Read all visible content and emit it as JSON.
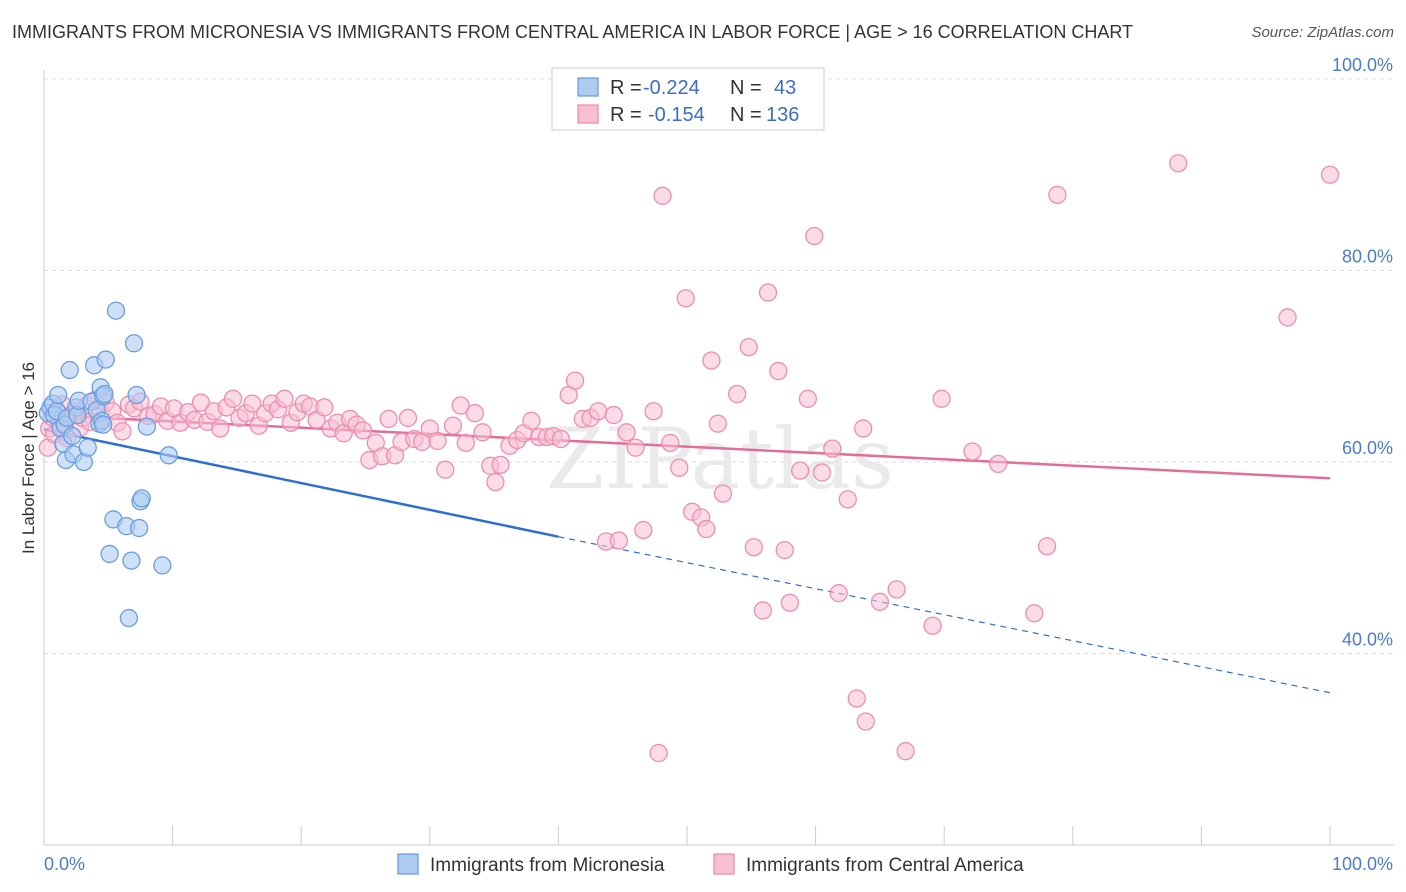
{
  "title": "IMMIGRANTS FROM MICRONESIA VS IMMIGRANTS FROM CENTRAL AMERICA IN LABOR FORCE | AGE > 16 CORRELATION CHART",
  "source": "Source: ZipAtlas.com",
  "watermark": "ZIPatlas",
  "colors": {
    "micronesia_fill": "#aecbf2",
    "micronesia_stroke": "#6a9ee0",
    "micronesia_line": "#2f6fd0",
    "central_fill": "#f8bfd1",
    "central_stroke": "#ee8eae",
    "central_line": "#e26d98",
    "tick_label": "#4a7cc9",
    "grid": "#dddddd"
  },
  "legend": {
    "rows": [
      {
        "r_label": "R =",
        "r_value": "-0.224",
        "n_label": "N =",
        "n_value": "43"
      },
      {
        "r_label": "R =",
        "r_value": "-0.154",
        "n_label": "N =",
        "n_value": "136"
      }
    ]
  },
  "chart_data": {
    "type": "scatter",
    "xlabel": "",
    "ylabel": "In Labor Force | Age > 16",
    "xlim": [
      0,
      100
    ],
    "ylim": [
      20,
      105
    ],
    "x_tick_labels": [
      "0.0%",
      "100.0%"
    ],
    "y_ticks": [
      40,
      60,
      80,
      100
    ],
    "y_tick_labels": [
      "40.0%",
      "60.0%",
      "80.0%",
      "100.0%"
    ],
    "grid": true,
    "legend_position": "top-center",
    "series": [
      {
        "name": "Immigrants from Micronesia",
        "trend": {
          "x0": 0,
          "y0": 63.4,
          "x1": 40,
          "y1": 52.2,
          "dashed_to_x": 100,
          "dashed_to_y": 35.9
        },
        "points": [
          [
            0.3,
            65.1
          ],
          [
            0.5,
            65.7
          ],
          [
            0.7,
            66.1
          ],
          [
            0.8,
            64.9
          ],
          [
            1.0,
            65.3
          ],
          [
            1.1,
            67.0
          ],
          [
            1.3,
            63.5
          ],
          [
            1.5,
            61.9
          ],
          [
            1.6,
            63.9
          ],
          [
            1.7,
            60.2
          ],
          [
            1.8,
            64.6
          ],
          [
            2.0,
            69.6
          ],
          [
            2.2,
            62.7
          ],
          [
            2.3,
            60.8
          ],
          [
            2.5,
            65.7
          ],
          [
            2.6,
            64.9
          ],
          [
            2.7,
            66.4
          ],
          [
            3.1,
            60.0
          ],
          [
            3.4,
            61.5
          ],
          [
            3.7,
            66.3
          ],
          [
            3.9,
            70.1
          ],
          [
            4.1,
            65.4
          ],
          [
            4.3,
            64.0
          ],
          [
            4.4,
            67.8
          ],
          [
            4.6,
            66.9
          ],
          [
            4.5,
            64.3
          ],
          [
            4.6,
            63.9
          ],
          [
            4.7,
            67.1
          ],
          [
            4.8,
            70.7
          ],
          [
            5.1,
            50.4
          ],
          [
            5.4,
            54.0
          ],
          [
            5.6,
            75.8
          ],
          [
            6.4,
            53.3
          ],
          [
            6.6,
            43.7
          ],
          [
            6.8,
            49.7
          ],
          [
            7.0,
            72.4
          ],
          [
            7.2,
            67.0
          ],
          [
            7.4,
            53.1
          ],
          [
            7.5,
            55.9
          ],
          [
            7.6,
            56.2
          ],
          [
            8.0,
            63.7
          ],
          [
            9.2,
            49.2
          ],
          [
            9.7,
            60.7
          ]
        ]
      },
      {
        "name": "Immigrants from Central America",
        "trend": {
          "x0": 0,
          "y0": 64.9,
          "x1": 100,
          "y1": 58.3
        },
        "points": [
          [
            0.3,
            61.5
          ],
          [
            0.4,
            63.5
          ],
          [
            0.6,
            64.7
          ],
          [
            0.8,
            62.9
          ],
          [
            1.0,
            65.4
          ],
          [
            1.2,
            64.0
          ],
          [
            1.4,
            66.0
          ],
          [
            1.6,
            63.1
          ],
          [
            1.8,
            62.5
          ],
          [
            2.0,
            64.8
          ],
          [
            2.2,
            65.0
          ],
          [
            2.5,
            65.3
          ],
          [
            2.8,
            63.6
          ],
          [
            3.0,
            64.6
          ],
          [
            3.3,
            65.9
          ],
          [
            3.6,
            64.2
          ],
          [
            4.0,
            66.5
          ],
          [
            4.4,
            65.1
          ],
          [
            4.8,
            66.2
          ],
          [
            5.3,
            65.3
          ],
          [
            5.7,
            64.1
          ],
          [
            6.1,
            63.2
          ],
          [
            6.6,
            66.0
          ],
          [
            7.0,
            65.6
          ],
          [
            7.5,
            66.3
          ],
          [
            8.1,
            64.8
          ],
          [
            8.6,
            65.0
          ],
          [
            9.1,
            65.8
          ],
          [
            9.6,
            64.3
          ],
          [
            10.1,
            65.6
          ],
          [
            10.6,
            64.1
          ],
          [
            11.2,
            65.2
          ],
          [
            11.7,
            64.4
          ],
          [
            12.2,
            66.2
          ],
          [
            12.7,
            64.2
          ],
          [
            13.2,
            65.3
          ],
          [
            13.7,
            63.5
          ],
          [
            14.2,
            65.7
          ],
          [
            14.7,
            66.6
          ],
          [
            15.2,
            64.6
          ],
          [
            15.7,
            65.1
          ],
          [
            16.2,
            66.1
          ],
          [
            16.7,
            63.8
          ],
          [
            17.2,
            65.1
          ],
          [
            17.7,
            66.1
          ],
          [
            18.2,
            65.5
          ],
          [
            18.7,
            66.6
          ],
          [
            19.2,
            64.1
          ],
          [
            19.7,
            65.2
          ],
          [
            20.2,
            66.1
          ],
          [
            20.7,
            65.8
          ],
          [
            21.2,
            64.4
          ],
          [
            21.8,
            65.7
          ],
          [
            22.3,
            63.5
          ],
          [
            22.8,
            64.1
          ],
          [
            23.3,
            63.0
          ],
          [
            23.8,
            64.5
          ],
          [
            24.3,
            63.9
          ],
          [
            24.8,
            63.3
          ],
          [
            25.3,
            60.2
          ],
          [
            25.8,
            62.0
          ],
          [
            26.3,
            60.6
          ],
          [
            26.8,
            64.5
          ],
          [
            27.3,
            60.7
          ],
          [
            27.8,
            62.1
          ],
          [
            28.3,
            64.6
          ],
          [
            28.8,
            62.4
          ],
          [
            29.4,
            62.1
          ],
          [
            30.0,
            63.5
          ],
          [
            30.6,
            62.2
          ],
          [
            31.2,
            59.2
          ],
          [
            31.8,
            63.8
          ],
          [
            32.4,
            65.9
          ],
          [
            32.8,
            62.0
          ],
          [
            33.5,
            65.1
          ],
          [
            34.1,
            63.1
          ],
          [
            34.7,
            59.6
          ],
          [
            35.1,
            57.9
          ],
          [
            35.5,
            59.7
          ],
          [
            36.2,
            61.7
          ],
          [
            36.8,
            62.3
          ],
          [
            37.3,
            63.0
          ],
          [
            37.9,
            64.3
          ],
          [
            38.5,
            62.6
          ],
          [
            39.1,
            62.6
          ],
          [
            39.6,
            62.7
          ],
          [
            40.2,
            62.4
          ],
          [
            40.8,
            67.0
          ],
          [
            41.3,
            68.5
          ],
          [
            41.9,
            64.5
          ],
          [
            42.5,
            64.6
          ],
          [
            43.1,
            65.3
          ],
          [
            43.7,
            51.7
          ],
          [
            44.3,
            64.9
          ],
          [
            44.7,
            51.8
          ],
          [
            45.3,
            63.1
          ],
          [
            46.0,
            61.5
          ],
          [
            46.6,
            52.9
          ],
          [
            47.4,
            65.3
          ],
          [
            47.8,
            29.6
          ],
          [
            48.1,
            87.8
          ],
          [
            48.7,
            62.0
          ],
          [
            49.4,
            59.4
          ],
          [
            49.9,
            77.1
          ],
          [
            50.4,
            54.8
          ],
          [
            51.1,
            54.2
          ],
          [
            51.5,
            53.0
          ],
          [
            51.9,
            70.6
          ],
          [
            52.4,
            64.0
          ],
          [
            52.8,
            56.7
          ],
          [
            53.9,
            67.1
          ],
          [
            54.8,
            72.0
          ],
          [
            55.2,
            51.1
          ],
          [
            55.9,
            44.5
          ],
          [
            56.3,
            77.7
          ],
          [
            57.1,
            69.5
          ],
          [
            57.6,
            50.8
          ],
          [
            58.0,
            45.3
          ],
          [
            58.8,
            59.1
          ],
          [
            59.4,
            66.6
          ],
          [
            59.9,
            83.6
          ],
          [
            60.5,
            58.9
          ],
          [
            61.3,
            61.4
          ],
          [
            61.8,
            46.3
          ],
          [
            62.5,
            56.1
          ],
          [
            63.2,
            35.3
          ],
          [
            63.7,
            63.5
          ],
          [
            63.9,
            32.9
          ],
          [
            65.0,
            45.4
          ],
          [
            66.3,
            46.7
          ],
          [
            67.0,
            29.8
          ],
          [
            69.1,
            42.9
          ],
          [
            69.8,
            66.6
          ],
          [
            72.2,
            61.1
          ],
          [
            74.2,
            59.8
          ],
          [
            77.0,
            44.2
          ],
          [
            78.0,
            51.2
          ],
          [
            78.8,
            87.9
          ],
          [
            88.2,
            91.2
          ],
          [
            96.7,
            75.1
          ],
          [
            100.0,
            90.0
          ]
        ]
      }
    ]
  },
  "bottom_legend": [
    {
      "label": "Immigrants from Micronesia"
    },
    {
      "label": "Immigrants from Central America"
    }
  ]
}
